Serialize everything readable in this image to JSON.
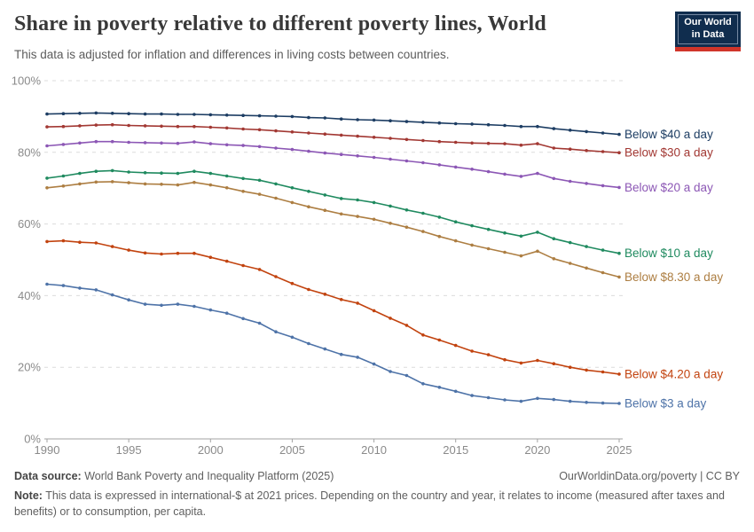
{
  "header": {
    "title": "Share in poverty relative to different poverty lines, World",
    "subtitle": "This data is adjusted for inflation and differences in living costs between countries.",
    "logo": {
      "line1": "Our World",
      "line2": "in Data",
      "bg_color": "#102d4e",
      "stripe_color": "#d0352a"
    }
  },
  "chart_data": {
    "type": "line",
    "title": "Share in poverty relative to different poverty lines, World",
    "xlabel": "",
    "ylabel": "",
    "ylim": [
      0,
      100
    ],
    "xlim": [
      1990,
      2025
    ],
    "grid": "horizontal-dashed",
    "legend_position": "end-of-line-labels",
    "yticks": [
      {
        "value": 0,
        "label": "0%"
      },
      {
        "value": 20,
        "label": "20%"
      },
      {
        "value": 40,
        "label": "40%"
      },
      {
        "value": 60,
        "label": "60%"
      },
      {
        "value": 80,
        "label": "80%"
      },
      {
        "value": 100,
        "label": "100%"
      }
    ],
    "xticks": [
      1990,
      1995,
      2000,
      2005,
      2010,
      2015,
      2020,
      2025
    ],
    "x": [
      1990,
      1991,
      1992,
      1993,
      1994,
      1995,
      1996,
      1997,
      1998,
      1999,
      2000,
      2001,
      2002,
      2003,
      2004,
      2005,
      2006,
      2007,
      2008,
      2009,
      2010,
      2011,
      2012,
      2013,
      2014,
      2015,
      2016,
      2017,
      2018,
      2019,
      2020,
      2021,
      2022,
      2023,
      2024,
      2025
    ],
    "series": [
      {
        "name": "Below $40 a day",
        "color": "#1d3d63",
        "values": [
          90.7,
          90.8,
          90.9,
          91.0,
          90.9,
          90.8,
          90.7,
          90.7,
          90.6,
          90.6,
          90.5,
          90.4,
          90.3,
          90.2,
          90.1,
          90.0,
          89.7,
          89.6,
          89.3,
          89.1,
          89.0,
          88.8,
          88.6,
          88.4,
          88.2,
          88.0,
          87.9,
          87.7,
          87.5,
          87.2,
          87.2,
          86.6,
          86.2,
          85.8,
          85.4,
          85.0
        ]
      },
      {
        "name": "Below $30 a day",
        "color": "#a23833",
        "values": [
          87.1,
          87.2,
          87.4,
          87.6,
          87.7,
          87.5,
          87.4,
          87.3,
          87.2,
          87.2,
          87.0,
          86.8,
          86.5,
          86.3,
          86.0,
          85.7,
          85.4,
          85.1,
          84.8,
          84.5,
          84.2,
          83.9,
          83.6,
          83.3,
          83.0,
          82.8,
          82.6,
          82.5,
          82.4,
          82.0,
          82.4,
          81.2,
          80.9,
          80.5,
          80.2,
          79.9
        ]
      },
      {
        "name": "Below $20 a day",
        "color": "#8c57b5",
        "values": [
          81.8,
          82.2,
          82.6,
          83.0,
          83.0,
          82.8,
          82.7,
          82.6,
          82.5,
          82.9,
          82.4,
          82.1,
          81.9,
          81.6,
          81.2,
          80.8,
          80.3,
          79.8,
          79.4,
          79.0,
          78.6,
          78.1,
          77.6,
          77.1,
          76.5,
          75.9,
          75.3,
          74.6,
          73.9,
          73.3,
          74.1,
          72.7,
          71.9,
          71.3,
          70.7,
          70.2
        ]
      },
      {
        "name": "Below $10 a day",
        "color": "#1f8a5f",
        "values": [
          72.8,
          73.4,
          74.1,
          74.7,
          74.9,
          74.5,
          74.3,
          74.2,
          74.1,
          74.7,
          74.1,
          73.4,
          72.7,
          72.2,
          71.2,
          70.1,
          69.1,
          68.1,
          67.1,
          66.7,
          66.0,
          65.0,
          63.9,
          63.0,
          61.9,
          60.6,
          59.5,
          58.5,
          57.5,
          56.6,
          57.7,
          55.9,
          54.8,
          53.7,
          52.7,
          51.8
        ]
      },
      {
        "name": "Below $8.30 a day",
        "color": "#ad7e42",
        "values": [
          70.1,
          70.6,
          71.2,
          71.7,
          71.8,
          71.5,
          71.2,
          71.1,
          70.9,
          71.6,
          70.9,
          70.1,
          69.1,
          68.3,
          67.2,
          66.0,
          64.8,
          63.8,
          62.8,
          62.1,
          61.3,
          60.2,
          59.1,
          57.9,
          56.5,
          55.3,
          54.1,
          53.1,
          52.1,
          51.1,
          52.4,
          50.3,
          49.0,
          47.7,
          46.4,
          45.2
        ]
      },
      {
        "name": "Below $4.20 a day",
        "color": "#c2430f",
        "values": [
          55.1,
          55.3,
          54.9,
          54.7,
          53.7,
          52.7,
          51.9,
          51.6,
          51.8,
          51.8,
          50.7,
          49.6,
          48.4,
          47.3,
          45.3,
          43.4,
          41.7,
          40.4,
          38.9,
          37.9,
          35.8,
          33.7,
          31.7,
          29.0,
          27.6,
          26.1,
          24.5,
          23.5,
          22.1,
          21.2,
          21.9,
          21.0,
          20.0,
          19.2,
          18.7,
          18.1
        ]
      },
      {
        "name": "Below $3 a day",
        "color": "#4e73a8",
        "values": [
          43.2,
          42.8,
          42.1,
          41.6,
          40.2,
          38.8,
          37.6,
          37.3,
          37.6,
          37.0,
          36.0,
          35.1,
          33.6,
          32.3,
          29.9,
          28.4,
          26.6,
          25.1,
          23.6,
          22.8,
          20.9,
          18.8,
          17.7,
          15.4,
          14.4,
          13.3,
          12.1,
          11.5,
          10.9,
          10.5,
          11.3,
          11.0,
          10.5,
          10.2,
          10.0,
          9.9
        ]
      }
    ]
  },
  "footer": {
    "datasource_label": "Data source:",
    "datasource": " World Bank Poverty and Inequality Platform (2025)",
    "link": "OurWorldinData.org/poverty | CC BY",
    "note_label": "Note:",
    "note": " This data is expressed in international-$ at 2021 prices. Depending on the country and year, it relates to income (measured after taxes and benefits) or to consumption, per capita."
  }
}
